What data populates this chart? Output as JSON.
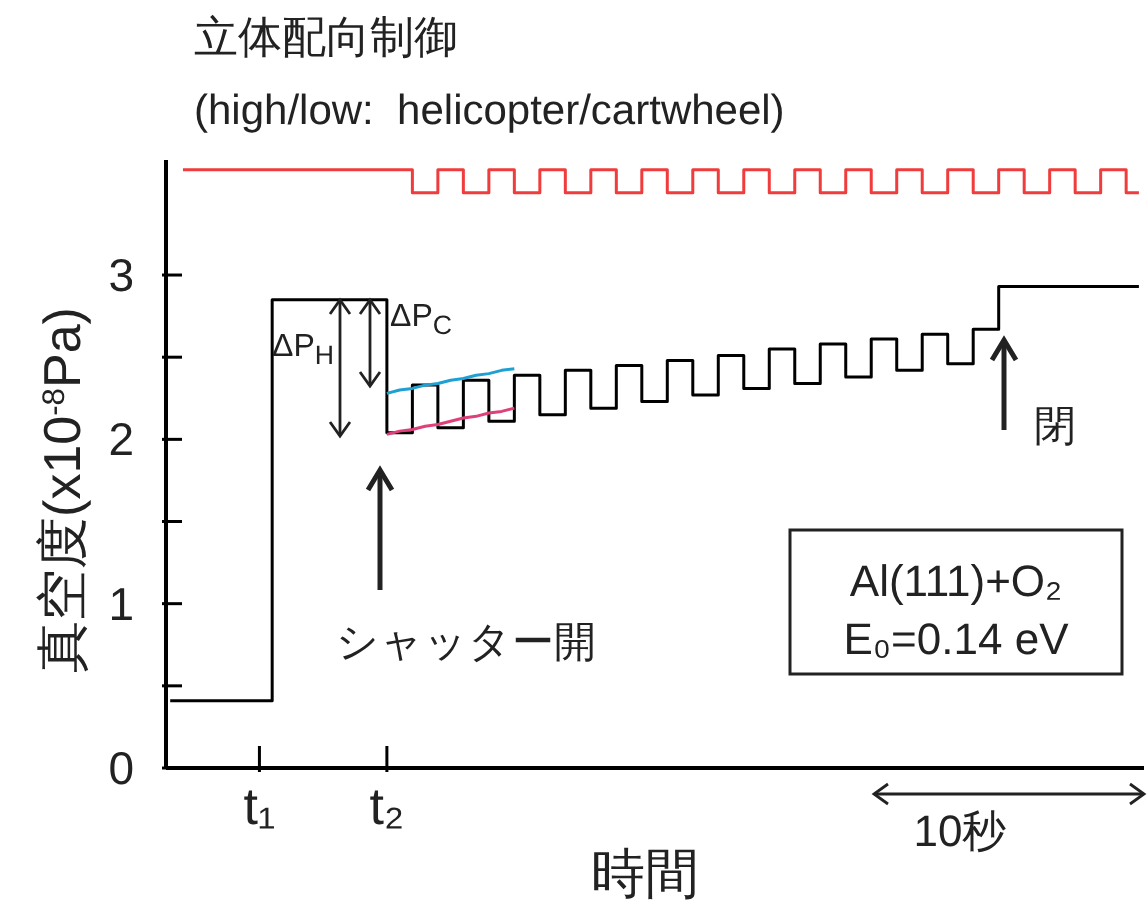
{
  "chart_data": {
    "type": "line",
    "title": "立体配向制御",
    "subtitle": "(high/low:  helicopter/cartwheel)",
    "xlabel": "時間",
    "ylabel": "真空度(x10$^{-8}$Pa)",
    "categories": [
      null,
      null,
      null,
      null,
      null,
      null,
      null,
      "t₁",
      null,
      null,
      null,
      null,
      null,
      null,
      null,
      null,
      null,
      "t₂",
      null,
      null,
      null,
      null,
      null,
      null,
      null,
      null,
      null,
      null,
      null,
      null,
      null,
      null,
      null,
      null,
      null,
      null,
      null,
      null,
      null,
      null,
      null,
      null,
      null,
      null,
      null,
      null,
      null,
      null,
      null,
      null,
      null,
      null,
      null,
      null,
      null,
      null,
      null,
      null,
      null,
      null,
      null,
      null,
      null,
      null,
      null,
      null,
      null,
      null,
      null,
      null,
      null,
      null,
      null,
      null,
      null,
      null,
      null
    ],
    "ylim": [
      0,
      3.7
    ],
    "yticks": [
      0,
      {
        "value": 0.5,
        "label": null
      },
      1,
      {
        "value": 1.5,
        "label": null
      },
      2,
      {
        "value": 2.5,
        "label": null
      },
      3
    ],
    "grid": false,
    "marker": "none",
    "line_style": "solid",
    "series": [
      {
        "type": "step",
        "color": "#f03c3c",
        "values": [
          null,
          3.64,
          3.64,
          3.64,
          3.64,
          3.64,
          3.64,
          3.64,
          3.64,
          3.64,
          3.64,
          3.64,
          3.64,
          3.64,
          3.64,
          3.64,
          3.64,
          3.64,
          3.64,
          3.5,
          3.5,
          3.64,
          3.64,
          3.5,
          3.5,
          3.64,
          3.64,
          3.5,
          3.5,
          3.64,
          3.64,
          3.5,
          3.5,
          3.64,
          3.64,
          3.5,
          3.5,
          3.64,
          3.64,
          3.5,
          3.5,
          3.64,
          3.64,
          3.5,
          3.5,
          3.64,
          3.64,
          3.5,
          3.5,
          3.64,
          3.64,
          3.5,
          3.5,
          3.64,
          3.64,
          3.5,
          3.5,
          3.64,
          3.64,
          3.5,
          3.5,
          3.64,
          3.64,
          3.5,
          3.5,
          3.64,
          3.64,
          3.5,
          3.5,
          3.64,
          3.64,
          3.5,
          3.5,
          3.64,
          3.64,
          3.5,
          3.5
        ]
      },
      {
        "type": "step",
        "color": "#000000",
        "values": [
          0.41,
          0.41,
          0.41,
          0.41,
          0.41,
          0.41,
          0.41,
          0.41,
          2.85,
          2.85,
          2.85,
          2.85,
          2.85,
          2.85,
          2.85,
          2.85,
          2.85,
          2.04,
          2.04,
          2.33,
          2.33,
          2.07,
          2.07,
          2.36,
          2.36,
          2.11,
          2.11,
          2.39,
          2.39,
          2.15,
          2.15,
          2.42,
          2.42,
          2.19,
          2.19,
          2.45,
          2.45,
          2.23,
          2.23,
          2.48,
          2.48,
          2.27,
          2.27,
          2.51,
          2.51,
          2.31,
          2.31,
          2.55,
          2.55,
          2.34,
          2.34,
          2.58,
          2.58,
          2.38,
          2.38,
          2.61,
          2.61,
          2.42,
          2.42,
          2.64,
          2.64,
          2.46,
          2.46,
          2.67,
          2.67,
          2.93,
          2.93,
          2.93,
          2.93,
          2.93,
          2.93,
          2.93,
          2.93,
          2.93,
          2.93,
          2.93,
          2.93
        ]
      },
      {
        "type": "line",
        "color": "#1ea0d2",
        "values": [
          null,
          null,
          null,
          null,
          null,
          null,
          null,
          null,
          null,
          null,
          null,
          null,
          null,
          null,
          null,
          null,
          null,
          2.28,
          2.3,
          2.31,
          2.33,
          2.34,
          2.36,
          2.37,
          2.39,
          2.4,
          2.42,
          2.43,
          null,
          null,
          null,
          null,
          null,
          null,
          null,
          null,
          null,
          null,
          null,
          null,
          null,
          null,
          null,
          null,
          null,
          null,
          null,
          null,
          null,
          null,
          null,
          null,
          null,
          null,
          null,
          null,
          null,
          null,
          null,
          null,
          null,
          null,
          null,
          null,
          null,
          null,
          null,
          null,
          null,
          null,
          null,
          null,
          null,
          null,
          null,
          null,
          null
        ]
      },
      {
        "type": "line",
        "color": "#e0407a",
        "values": [
          null,
          null,
          null,
          null,
          null,
          null,
          null,
          null,
          null,
          null,
          null,
          null,
          null,
          null,
          null,
          null,
          null,
          2.03,
          2.05,
          2.06,
          2.08,
          2.09,
          2.11,
          2.13,
          2.14,
          2.16,
          2.17,
          2.19,
          null,
          null,
          null,
          null,
          null,
          null,
          null,
          null,
          null,
          null,
          null,
          null,
          null,
          null,
          null,
          null,
          null,
          null,
          null,
          null,
          null,
          null,
          null,
          null,
          null,
          null,
          null,
          null,
          null,
          null,
          null,
          null,
          null,
          null,
          null,
          null,
          null,
          null,
          null,
          null,
          null,
          null,
          null,
          null,
          null,
          null,
          null,
          null,
          null
        ]
      }
    ],
    "annotations": [
      "ΔP$_{H}$",
      "ΔP$_{C}$",
      "シャッター開",
      "閉",
      "Al(111)+O₂",
      "E₀=0.14 eV",
      "10秒"
    ]
  }
}
